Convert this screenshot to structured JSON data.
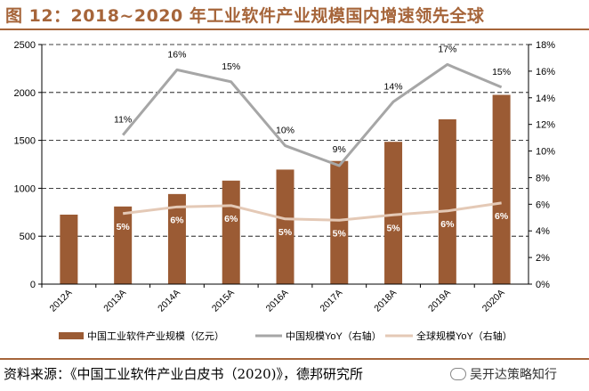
{
  "figure_title": "图 12：2018~2020 年工业软件产业规模国内增速领先全球",
  "source_text": "资料来源：《中国工业软件产业白皮书（2020)》，德邦研究所",
  "watermark_text": "吴开达策略知行",
  "colors": {
    "bar": "#9b5b34",
    "domestic": "#a6a6a6",
    "global": "#e4c9b6",
    "brand": "#a6653a"
  },
  "chart_data": {
    "type": "bar",
    "categories": [
      "2012A",
      "2013A",
      "2014A",
      "2015A",
      "2016A",
      "2017A",
      "2018A",
      "2019A",
      "2020A"
    ],
    "series": [
      {
        "name": "中国工业软件产业规模（亿元）",
        "type": "bar",
        "axis": "left",
        "values": [
          725,
          810,
          940,
          1080,
          1195,
          1285,
          1485,
          1720,
          1975
        ]
      },
      {
        "name": "中国规模YoY（右轴）",
        "type": "line",
        "axis": "right",
        "values": [
          null,
          11.2,
          16.1,
          15.2,
          10.4,
          8.9,
          13.7,
          16.5,
          14.8
        ],
        "labels": [
          "",
          "11%",
          "16%",
          "15%",
          "10%",
          "9%",
          "14%",
          "17%",
          "15%"
        ]
      },
      {
        "name": "全球规模YoY（右轴）",
        "type": "line",
        "axis": "right",
        "values": [
          null,
          5.3,
          5.8,
          5.9,
          4.9,
          4.8,
          5.2,
          5.5,
          6.1
        ],
        "labels": [
          "",
          "5%",
          "6%",
          "6%",
          "5%",
          "5%",
          "5%",
          "6%",
          "6%"
        ]
      }
    ],
    "y_left": {
      "min": 0,
      "max": 2500,
      "ticks": [
        0,
        500,
        1000,
        1500,
        2000,
        2500
      ]
    },
    "y_right": {
      "min": 0,
      "max": 18,
      "ticks": [
        0,
        2,
        4,
        6,
        8,
        10,
        12,
        14,
        16,
        18
      ],
      "suffix": "%"
    },
    "gridlines": true,
    "legend_position": "bottom"
  }
}
